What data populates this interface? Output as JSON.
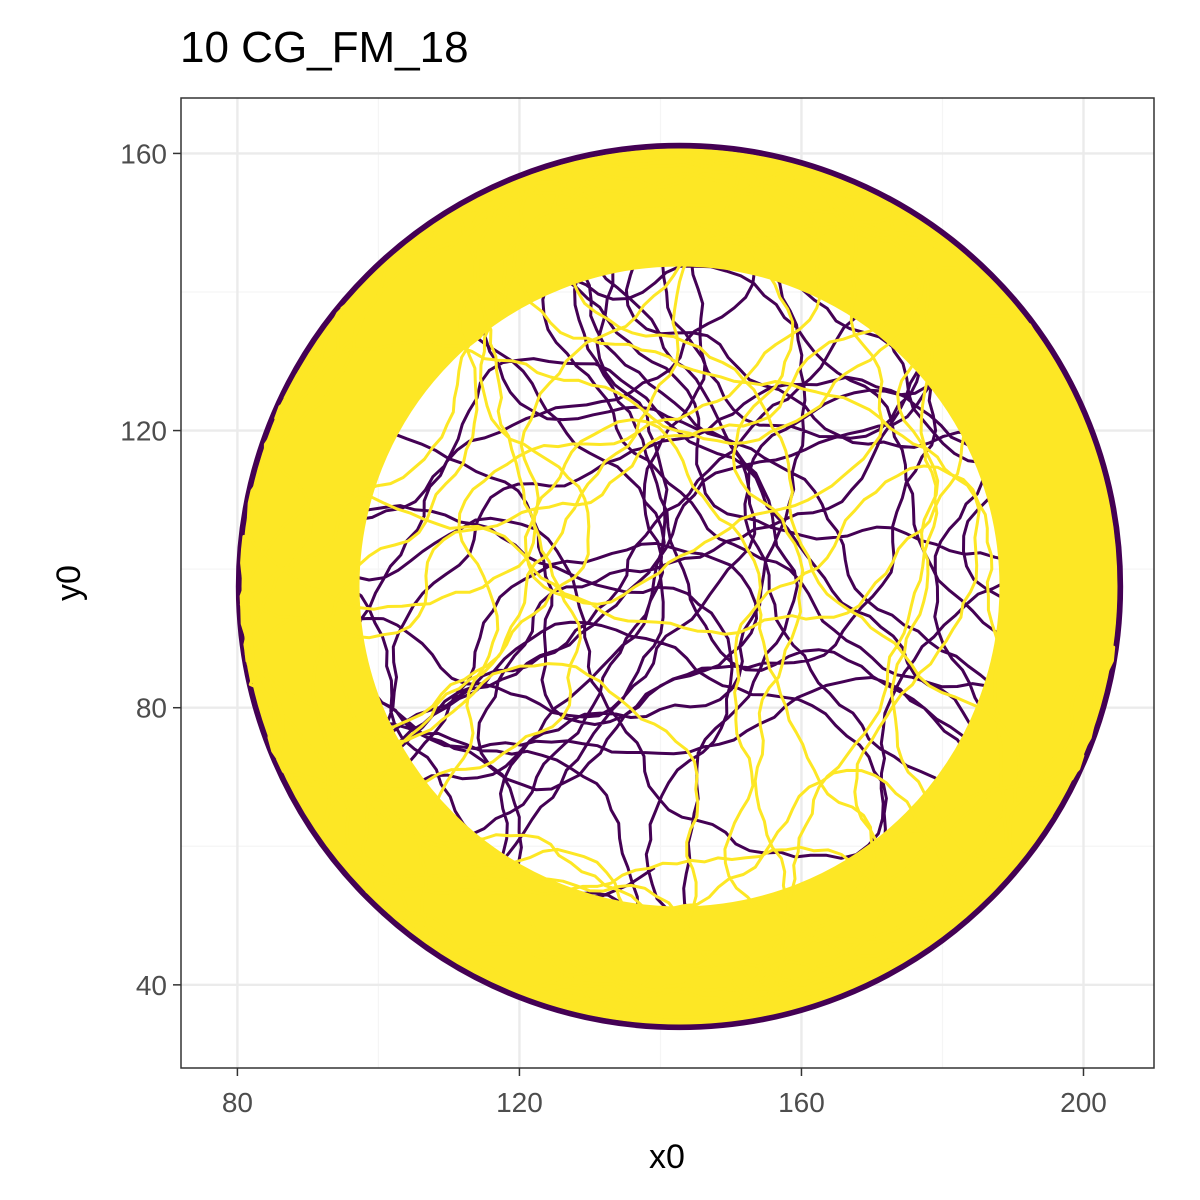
{
  "chart_data": {
    "type": "line",
    "title": "10 CG_FM_18",
    "xlabel": "x0",
    "ylabel": "y0",
    "xlim": [
      72,
      210
    ],
    "ylim": [
      28,
      168
    ],
    "x_ticks": [
      "80",
      "120",
      "160",
      "200"
    ],
    "y_ticks": [
      "40",
      "80",
      "120",
      "160"
    ],
    "x_tick_values": [
      80,
      120,
      160,
      200
    ],
    "y_tick_values": [
      40,
      80,
      120,
      160
    ],
    "grid": true,
    "legend": "none",
    "arena": {
      "center_x": 142.7,
      "center_y": 97.5,
      "radius": 62.5
    },
    "series": [
      {
        "color": "#440154"
      },
      {
        "color": "#FDE725"
      }
    ]
  },
  "colors": {
    "panel_border": "#333333",
    "grid_major": "#ebebeb",
    "grid_minor": "#f5f5f5"
  }
}
